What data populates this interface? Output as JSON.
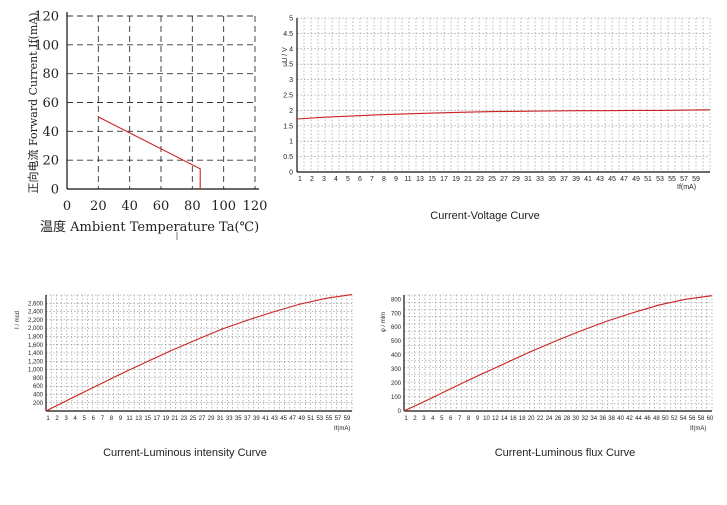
{
  "colors": {
    "curve": "#cc2222",
    "grid": "#8a8a8a",
    "axis": "#111111",
    "text": "#222222"
  },
  "chart_data": [
    {
      "type": "line",
      "title": "",
      "xlabel": "温度 Ambient Temperature Ta(℃)",
      "ylabel": "正向电流 Forward Current If(mA)",
      "xlim": [
        0,
        120
      ],
      "ylim": [
        0,
        120
      ],
      "xticks": [
        "0",
        "20",
        "40",
        "60",
        "80",
        "100",
        "120"
      ],
      "yticks": [
        "0",
        "20",
        "40",
        "60",
        "80",
        "100",
        "120"
      ],
      "grid": true,
      "x": [
        20,
        85,
        85
      ],
      "y": [
        50,
        14,
        0
      ]
    },
    {
      "type": "line",
      "caption": "Current-Voltage Curve",
      "xlabel": "If(mA)",
      "ylabel": "U / V",
      "xlim": [
        1,
        60
      ],
      "ylim": [
        0,
        5
      ],
      "xticks": [
        "1",
        "2",
        "3",
        "4",
        "5",
        "6",
        "7",
        "8",
        "9",
        "11",
        "13",
        "15",
        "17",
        "19",
        "21",
        "23",
        "25",
        "27",
        "29",
        "31",
        "33",
        "35",
        "37",
        "39",
        "41",
        "43",
        "45",
        "47",
        "49",
        "51",
        "53",
        "55",
        "57",
        "59"
      ],
      "yticks": [
        "0",
        "0.5",
        "1",
        "1.5",
        "2",
        "2.5",
        "3",
        "3.5",
        "4",
        "4.5",
        "5"
      ],
      "grid": true,
      "x": [
        1,
        5,
        9,
        13,
        17,
        21,
        25,
        29,
        33,
        37,
        41,
        45,
        49,
        53,
        57,
        60
      ],
      "y": [
        1.72,
        1.78,
        1.82,
        1.86,
        1.89,
        1.92,
        1.94,
        1.96,
        1.97,
        1.98,
        1.99,
        1.99,
        2.0,
        2.0,
        2.01,
        2.02
      ]
    },
    {
      "type": "line",
      "caption": "Current-Luminous intensity Curve",
      "xlabel": "If(mA)",
      "ylabel": "I / mcd",
      "xlim": [
        1,
        60
      ],
      "ylim": [
        0,
        2800
      ],
      "xticks": [
        "1",
        "2",
        "3",
        "4",
        "5",
        "6",
        "7",
        "8",
        "9",
        "11",
        "13",
        "15",
        "17",
        "19",
        "21",
        "23",
        "25",
        "27",
        "29",
        "31",
        "33",
        "35",
        "37",
        "39",
        "41",
        "43",
        "45",
        "47",
        "49",
        "51",
        "53",
        "55",
        "57",
        "59"
      ],
      "yticks": [
        "200",
        "400",
        "600",
        "800",
        "1,000",
        "1,200",
        "1,400",
        "1,600",
        "1,800",
        "2,000",
        "2,200",
        "2,400",
        "2,600"
      ],
      "grid": true,
      "x": [
        1,
        5,
        10,
        15,
        20,
        25,
        30,
        35,
        40,
        45,
        50,
        55,
        60
      ],
      "y": [
        0,
        250,
        560,
        870,
        1160,
        1450,
        1720,
        1980,
        2200,
        2400,
        2580,
        2720,
        2810
      ]
    },
    {
      "type": "line",
      "caption": "Current-Luminous flux Curve",
      "xlabel": "If(mA)",
      "ylabel": "φ / mlm",
      "xlim": [
        1,
        60
      ],
      "ylim": [
        0,
        830
      ],
      "xticks": [
        "1",
        "2",
        "3",
        "4",
        "5",
        "6",
        "7",
        "8",
        "9",
        "10",
        "12",
        "14",
        "16",
        "18",
        "20",
        "22",
        "24",
        "26",
        "28",
        "30",
        "32",
        "34",
        "36",
        "38",
        "40",
        "42",
        "44",
        "46",
        "48",
        "50",
        "52",
        "54",
        "56",
        "58",
        "60"
      ],
      "yticks": [
        "0",
        "100",
        "200",
        "300",
        "400",
        "500",
        "600",
        "700",
        "800"
      ],
      "grid": true,
      "x": [
        1,
        5,
        10,
        15,
        20,
        25,
        30,
        35,
        40,
        45,
        50,
        55,
        60
      ],
      "y": [
        0,
        70,
        160,
        250,
        335,
        420,
        500,
        575,
        645,
        705,
        760,
        800,
        825
      ]
    }
  ]
}
